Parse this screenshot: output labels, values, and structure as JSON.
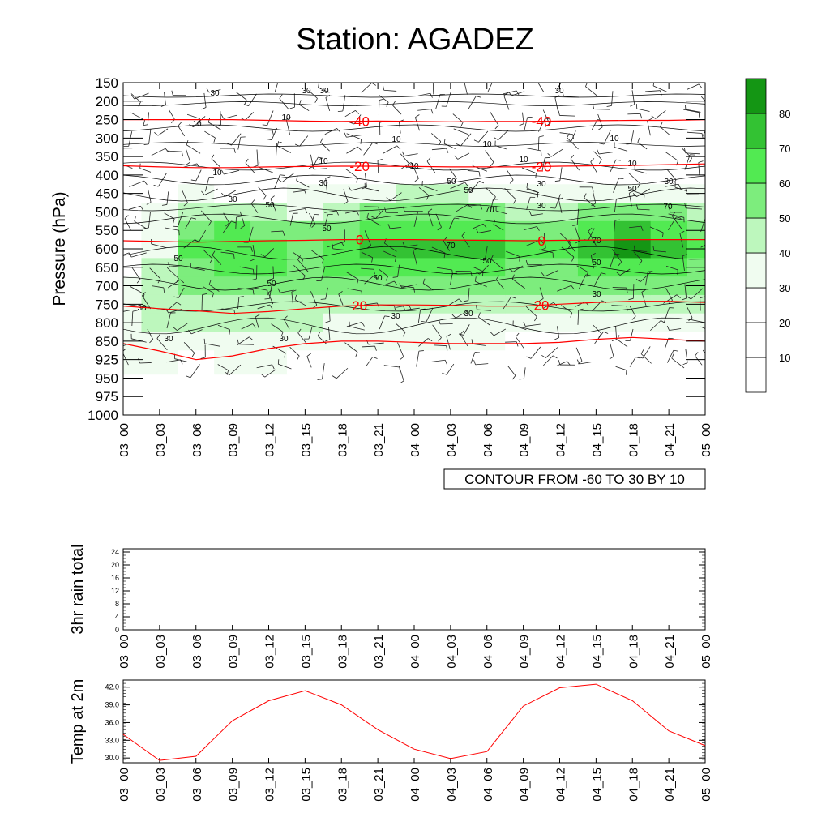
{
  "title": "Station: AGADEZ",
  "colors": {
    "fill_levels": [
      "#ffffff",
      "#ffffff",
      "#ffffff",
      "#f0fcf0",
      "#bdf7bd",
      "#7ded7d",
      "#52ea52",
      "#33c233",
      "#149614"
    ],
    "temperature_line": "#ff0000",
    "contour_line": "#000000",
    "axis": "#000000"
  },
  "chart_data": [
    {
      "type": "heatmap",
      "title": "Station: AGADEZ",
      "ylabel": "Pressure (hPa)",
      "xlabel": "",
      "x": [
        "03_00",
        "03_03",
        "03_06",
        "03_09",
        "03_12",
        "03_15",
        "03_18",
        "03_21",
        "04_00",
        "04_03",
        "04_06",
        "04_09",
        "04_12",
        "04_15",
        "04_18",
        "04_21",
        "05_00"
      ],
      "y_levels": [
        "150",
        "200",
        "250",
        "300",
        "350",
        "400",
        "450",
        "500",
        "550",
        "600",
        "650",
        "700",
        "750",
        "800",
        "850",
        "925",
        "950",
        "975",
        "1000"
      ],
      "y_reversed": true,
      "annotation": "CONTOUR FROM -60 TO 30 BY 10",
      "colorbar": {
        "labels": [
          "10",
          "20",
          "30",
          "40",
          "50",
          "60",
          "70",
          "80"
        ],
        "bounds": [
          0,
          90
        ]
      },
      "humidity_contour_labels": [
        "10",
        "30",
        "50",
        "70"
      ],
      "temperature_contour_labels": [
        "-40",
        "-20",
        "0",
        "20"
      ],
      "humidity_levels": [
        "400",
        "450",
        "500",
        "550",
        "600",
        "650",
        "700",
        "750",
        "800",
        "850",
        "925"
      ],
      "humidity": [
        [
          22,
          26,
          26,
          22,
          22,
          25,
          30,
          30,
          30,
          30,
          30
        ],
        [
          24,
          28,
          33,
          37,
          37,
          40,
          40,
          40,
          40,
          38,
          33
        ],
        [
          24,
          30,
          40,
          57,
          60,
          58,
          55,
          48,
          40,
          33,
          28
        ],
        [
          22,
          28,
          45,
          60,
          65,
          62,
          55,
          48,
          42,
          36,
          32
        ],
        [
          22,
          28,
          42,
          58,
          62,
          60,
          55,
          48,
          42,
          36,
          30
        ],
        [
          24,
          30,
          38,
          50,
          56,
          56,
          53,
          48,
          42,
          34,
          28
        ],
        [
          26,
          36,
          45,
          55,
          60,
          60,
          52,
          45,
          38,
          32,
          26
        ],
        [
          26,
          38,
          52,
          65,
          75,
          64,
          54,
          45,
          36,
          30,
          26
        ],
        [
          26,
          40,
          55,
          68,
          78,
          66,
          55,
          45,
          36,
          30,
          26
        ],
        [
          26,
          40,
          55,
          66,
          76,
          64,
          54,
          44,
          36,
          30,
          26
        ],
        [
          26,
          38,
          52,
          64,
          72,
          62,
          52,
          44,
          36,
          30,
          26
        ],
        [
          24,
          34,
          48,
          58,
          64,
          58,
          50,
          42,
          34,
          28,
          24
        ],
        [
          24,
          34,
          46,
          56,
          62,
          56,
          50,
          42,
          34,
          28,
          24
        ],
        [
          24,
          36,
          52,
          66,
          76,
          64,
          52,
          42,
          34,
          28,
          24
        ],
        [
          24,
          36,
          55,
          70,
          82,
          68,
          54,
          42,
          34,
          28,
          24
        ],
        [
          24,
          34,
          50,
          62,
          70,
          62,
          50,
          40,
          32,
          28,
          24
        ],
        [
          22,
          30,
          44,
          56,
          62,
          58,
          50,
          40,
          32,
          28,
          24
        ]
      ],
      "temperature_isotherms": [
        {
          "value": -40,
          "label": "-40",
          "pressure": [
            250,
            250,
            250,
            250,
            252,
            254,
            255,
            254,
            255,
            256,
            255,
            255,
            254,
            253,
            252,
            252,
            250
          ]
        },
        {
          "value": -20,
          "label": "-20",
          "pressure": [
            375,
            378,
            380,
            380,
            378,
            377,
            376,
            376,
            377,
            378,
            378,
            378,
            376,
            375,
            374,
            372,
            370
          ]
        },
        {
          "value": 0,
          "label": "0",
          "pressure": [
            578,
            580,
            582,
            580,
            578,
            577,
            575,
            575,
            575,
            576,
            577,
            578,
            577,
            576,
            575,
            575,
            575
          ]
        },
        {
          "value": 20,
          "label": "20",
          "pressure": [
            755,
            762,
            768,
            775,
            770,
            762,
            755,
            752,
            752,
            753,
            755,
            755,
            750,
            745,
            742,
            742,
            745
          ]
        },
        {
          "value": 30,
          "label": "",
          "pressure": [
            860,
            890,
            925,
            910,
            880,
            860,
            850,
            850,
            855,
            860,
            860,
            860,
            855,
            845,
            840,
            845,
            850
          ]
        }
      ]
    },
    {
      "type": "line",
      "ylabel": "3hr rain total",
      "xlabel": "",
      "x": [
        "03_00",
        "03_03",
        "03_06",
        "03_09",
        "03_12",
        "03_15",
        "03_18",
        "03_21",
        "04_00",
        "04_03",
        "04_06",
        "04_09",
        "04_12",
        "04_15",
        "04_18",
        "04_21",
        "05_00"
      ],
      "yticks": [
        "0",
        "4",
        "8",
        "12",
        "16",
        "20",
        "24"
      ],
      "ylim": [
        0,
        25
      ],
      "series": [
        {
          "values": [
            0,
            0,
            0,
            0,
            0,
            0,
            0,
            0,
            0,
            0,
            0,
            0,
            0,
            0,
            0,
            0,
            0
          ]
        }
      ]
    },
    {
      "type": "line",
      "ylabel": "Temp at 2m",
      "xlabel": "",
      "x": [
        "03_00",
        "03_03",
        "03_06",
        "03_09",
        "03_12",
        "03_15",
        "03_18",
        "03_21",
        "04_00",
        "04_03",
        "04_06",
        "04_09",
        "04_12",
        "04_15",
        "04_18",
        "04_21",
        "05_00"
      ],
      "yticks": [
        "30.0",
        "33.0",
        "36.0",
        "39.0",
        "42.0"
      ],
      "ylim": [
        29.2,
        43.2
      ],
      "series": [
        {
          "values": [
            34.0,
            29.6,
            30.3,
            36.3,
            39.7,
            41.4,
            39.0,
            34.8,
            31.5,
            29.9,
            31.1,
            38.8,
            41.9,
            42.5,
            39.7,
            34.6,
            32.1
          ]
        }
      ]
    }
  ]
}
